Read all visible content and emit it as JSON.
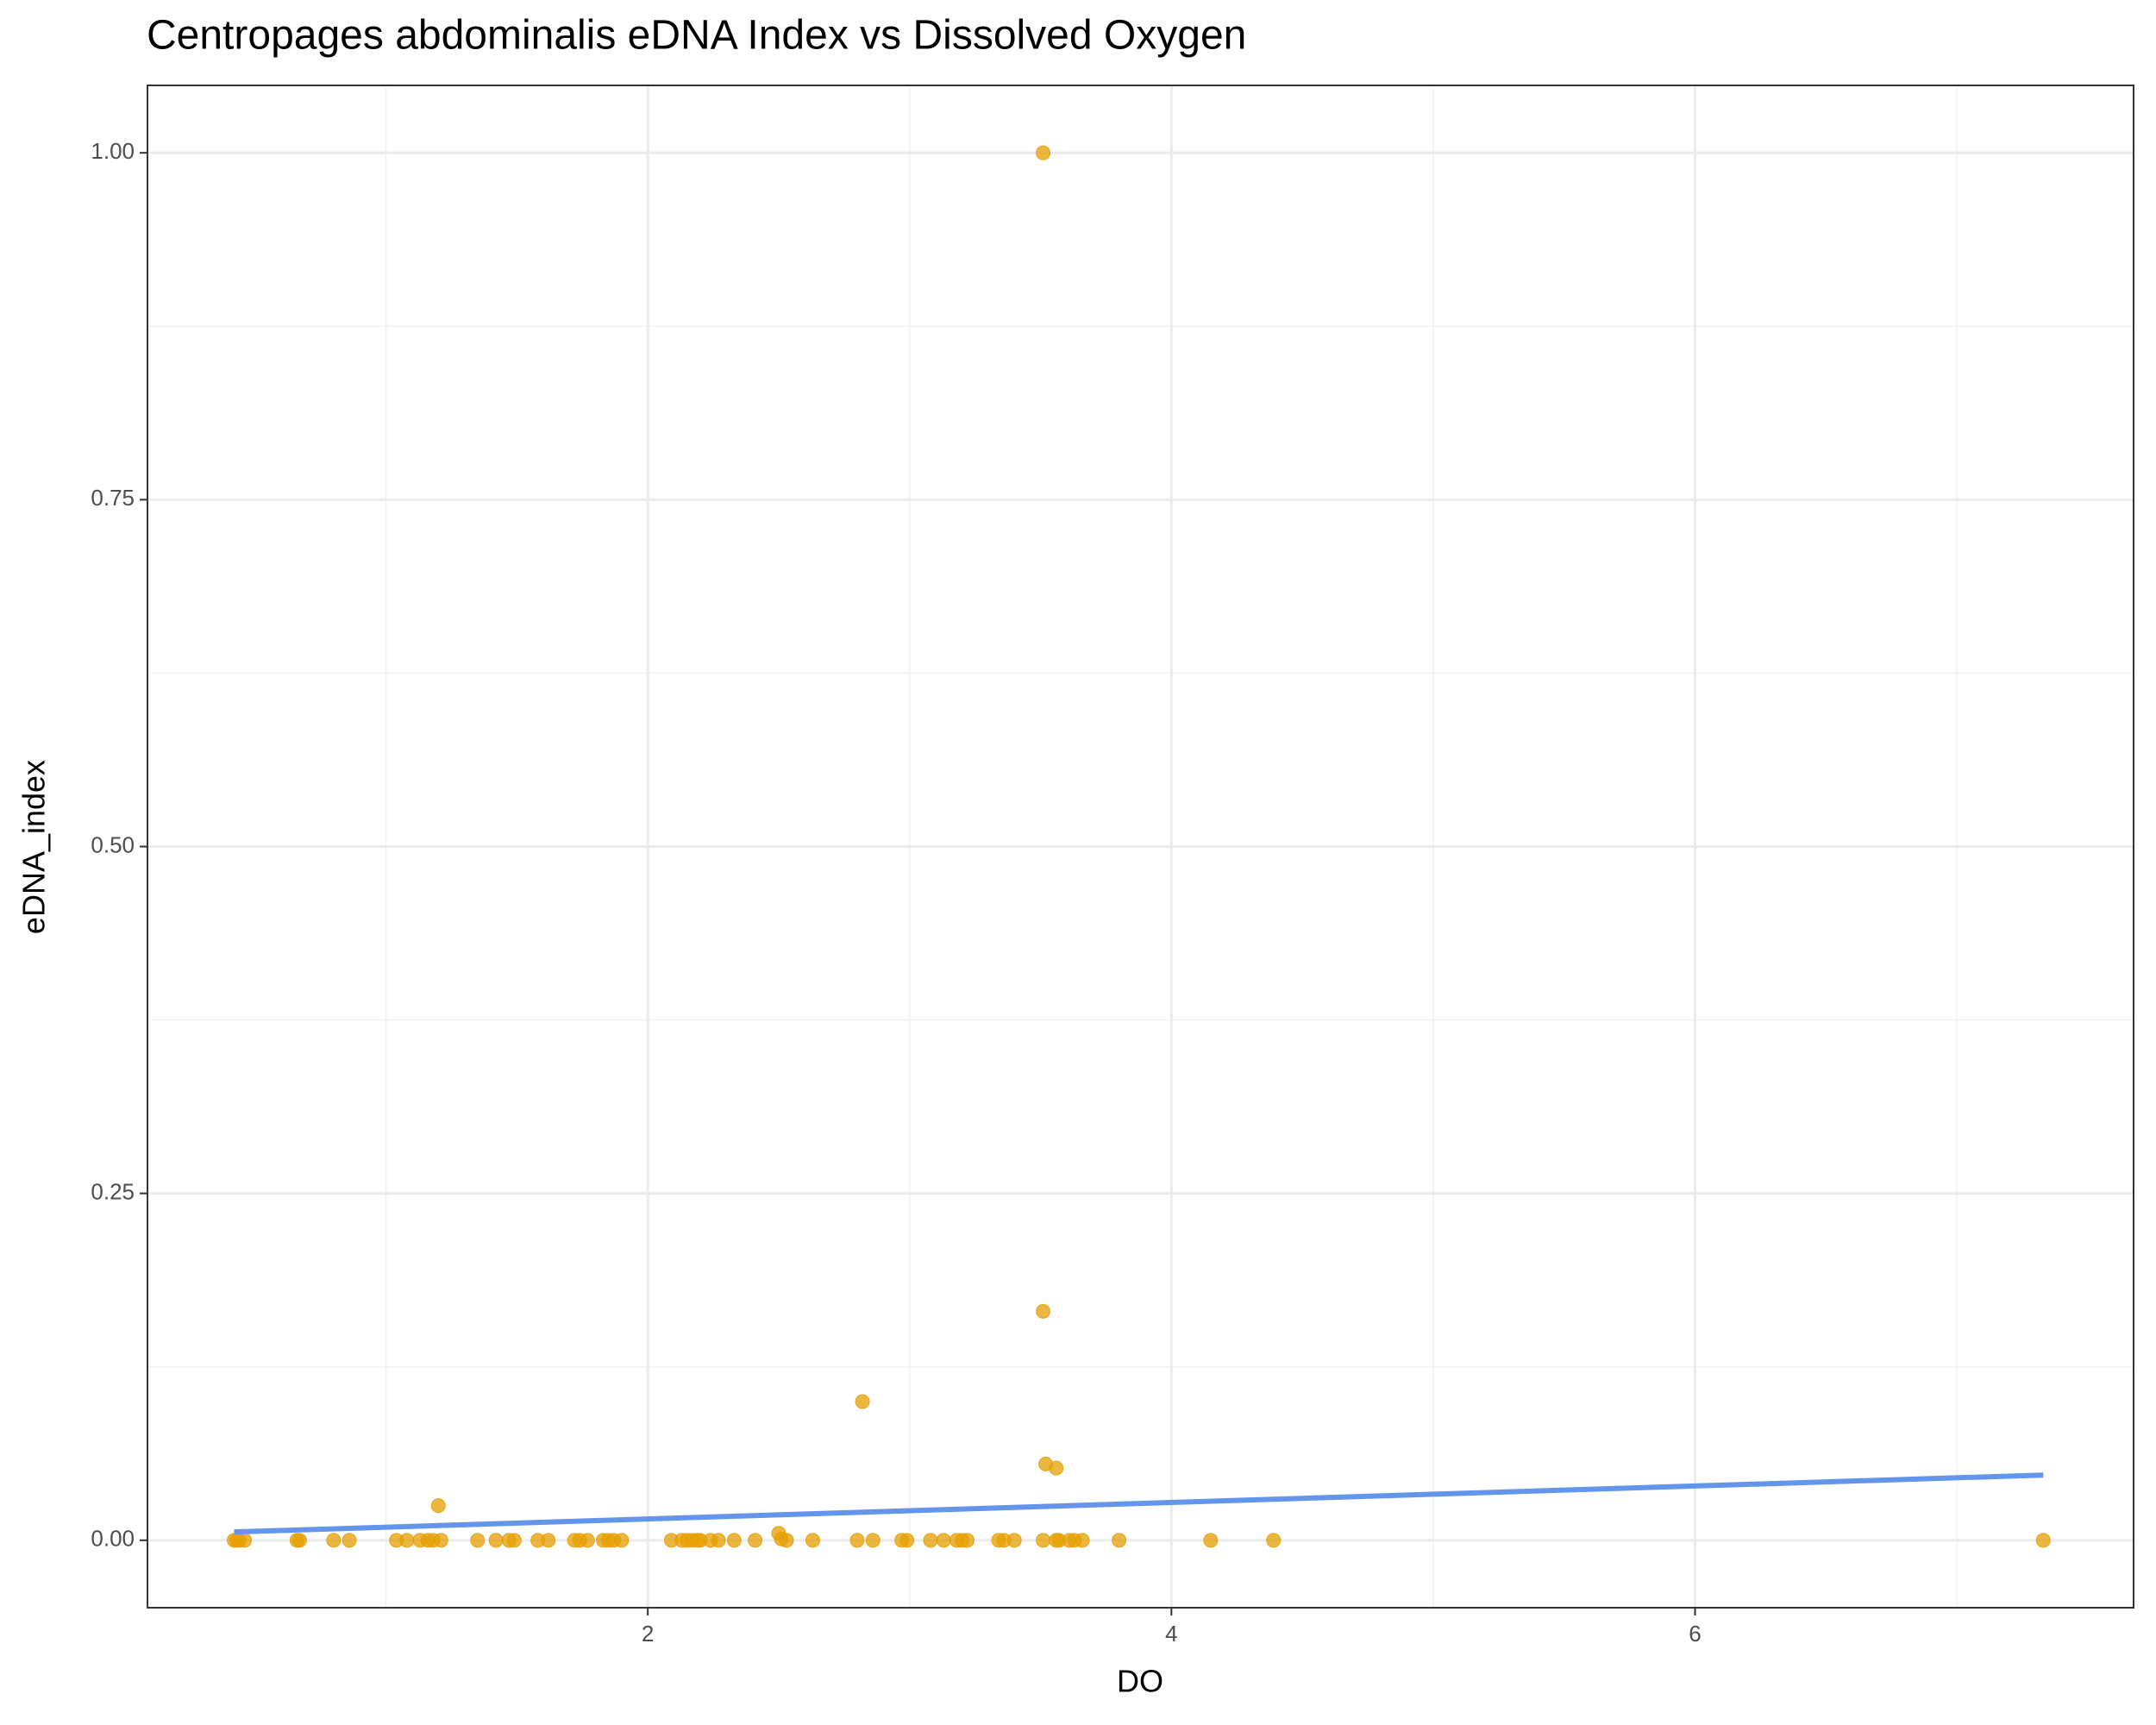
{
  "chart_data": {
    "type": "scatter",
    "title": "Centropages abdominalis eDNA Index vs Dissolved Oxygen",
    "x_label": "DO",
    "y_label": "eDNA_index",
    "color": "#E69F00",
    "x": [
      0.42,
      0.43,
      0.44,
      0.46,
      0.66,
      0.67,
      0.8,
      0.86,
      1.04,
      1.08,
      1.13,
      1.16,
      1.18,
      1.21,
      1.35,
      1.42,
      1.47,
      1.49,
      1.58,
      1.62,
      1.72,
      1.74,
      1.77,
      1.83,
      1.85,
      1.87,
      1.9,
      2.09,
      2.13,
      2.15,
      2.17,
      2.19,
      2.2,
      2.24,
      2.27,
      2.33,
      2.41,
      2.53,
      2.63,
      2.8,
      2.86,
      2.97,
      2.99,
      3.08,
      3.13,
      3.18,
      3.2,
      3.22,
      3.34,
      3.36,
      3.4,
      3.51,
      3.56,
      3.57,
      3.61,
      3.63,
      3.66,
      3.8,
      4.15,
      4.39,
      7.33,
      1.2,
      2.5,
      2.51,
      2.82,
      3.51,
      3.52,
      3.56,
      3.51
    ],
    "values": [
      0,
      0,
      0,
      0,
      0,
      0,
      0,
      0,
      0,
      0,
      0,
      0,
      0,
      0,
      0,
      0,
      0,
      0,
      0,
      0,
      0,
      0,
      0,
      0,
      0,
      0,
      0,
      0,
      0,
      0,
      0,
      0,
      0,
      0,
      0,
      0,
      0,
      0,
      0,
      0,
      0,
      0,
      0,
      0,
      0,
      0,
      0,
      0,
      0,
      0,
      0,
      0,
      0,
      0,
      0,
      0,
      0,
      0,
      0,
      0,
      0,
      0.025,
      0.005,
      0.001,
      0.1,
      0.165,
      0.055,
      0.052,
      1.0
    ],
    "trend_line": {
      "color": "#6495ED",
      "x": [
        0.42,
        7.33
      ],
      "values": [
        0.006,
        0.047
      ]
    },
    "xlim": [
      0.089,
      7.675
    ],
    "ylim": [
      -0.0486,
      1.0486
    ],
    "xticks": [
      2,
      4,
      6
    ],
    "yticks": [
      {
        "value": 0,
        "label": "0.00"
      },
      {
        "value": 0.25,
        "label": "0.25"
      },
      {
        "value": 0.5,
        "label": "0.50"
      },
      {
        "value": 0.75,
        "label": "0.75"
      },
      {
        "value": 1,
        "label": "1.00"
      }
    ],
    "grid": true
  }
}
